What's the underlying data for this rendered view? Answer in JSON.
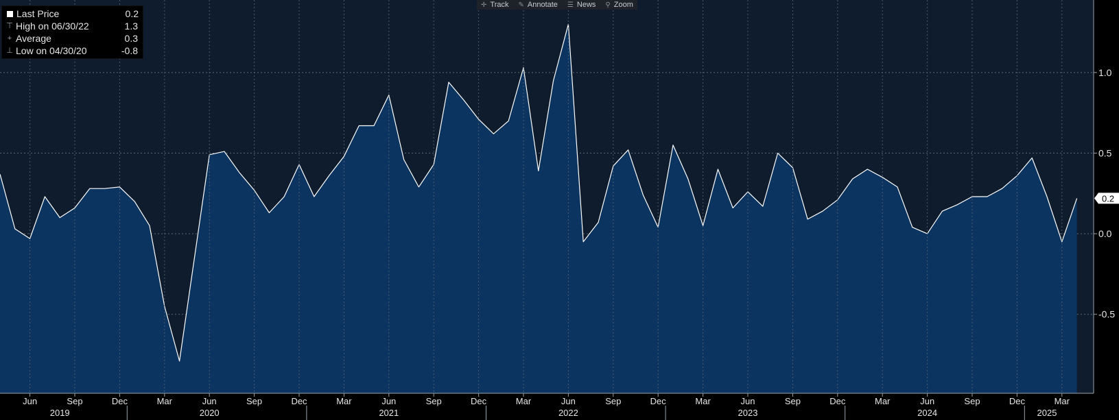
{
  "toolbar": {
    "track": "Track",
    "annotate": "Annotate",
    "news": "News",
    "zoom": "Zoom"
  },
  "legend": {
    "last_label": "Last Price",
    "last_value": "0.2",
    "high_label": "High on 06/30/22",
    "high_value": "1.3",
    "avg_label": "Average",
    "avg_value": "0.3",
    "low_label": "Low on 04/30/20",
    "low_value": "-0.8"
  },
  "colors": {
    "background": "#0f1c2d",
    "area_fill": "#0b3460",
    "line": "#ffffff",
    "grid": "#5a6775",
    "axis_text": "#e6e6e6"
  },
  "chart_data": {
    "type": "area",
    "x": [
      "2019-04",
      "2019-05",
      "2019-06",
      "2019-07",
      "2019-08",
      "2019-09",
      "2019-10",
      "2019-11",
      "2019-12",
      "2020-01",
      "2020-02",
      "2020-03",
      "2020-04",
      "2020-05",
      "2020-06",
      "2020-07",
      "2020-08",
      "2020-09",
      "2020-10",
      "2020-11",
      "2020-12",
      "2021-01",
      "2021-02",
      "2021-03",
      "2021-04",
      "2021-05",
      "2021-06",
      "2021-07",
      "2021-08",
      "2021-09",
      "2021-10",
      "2021-11",
      "2021-12",
      "2022-01",
      "2022-02",
      "2022-03",
      "2022-04",
      "2022-05",
      "2022-06",
      "2022-07",
      "2022-08",
      "2022-09",
      "2022-10",
      "2022-11",
      "2022-12",
      "2023-01",
      "2023-02",
      "2023-03",
      "2023-04",
      "2023-05",
      "2023-06",
      "2023-07",
      "2023-08",
      "2023-09",
      "2023-10",
      "2023-11",
      "2023-12",
      "2024-01",
      "2024-02",
      "2024-03",
      "2024-04",
      "2024-05",
      "2024-06",
      "2024-07",
      "2024-08",
      "2024-09",
      "2024-10",
      "2024-11",
      "2024-12",
      "2025-01",
      "2025-02",
      "2025-03",
      "2025-04"
    ],
    "values": [
      0.37,
      0.03,
      -0.03,
      0.23,
      0.1,
      0.16,
      0.28,
      0.28,
      0.29,
      0.2,
      0.05,
      -0.45,
      -0.79,
      -0.15,
      0.49,
      0.51,
      0.38,
      0.27,
      0.13,
      0.23,
      0.43,
      0.23,
      0.36,
      0.48,
      0.67,
      0.67,
      0.86,
      0.46,
      0.29,
      0.43,
      0.94,
      0.83,
      0.71,
      0.62,
      0.7,
      1.03,
      0.39,
      0.95,
      1.3,
      -0.05,
      0.07,
      0.42,
      0.52,
      0.24,
      0.04,
      0.55,
      0.34,
      0.05,
      0.4,
      0.16,
      0.26,
      0.17,
      0.5,
      0.41,
      0.09,
      0.14,
      0.21,
      0.34,
      0.4,
      0.35,
      0.29,
      0.04,
      0.0,
      0.14,
      0.18,
      0.23,
      0.23,
      0.28,
      0.36,
      0.47,
      0.23,
      -0.05,
      0.22
    ],
    "ylim": [
      -0.99,
      1.45
    ],
    "yticks": [
      -0.5,
      0.0,
      0.5,
      1.0
    ],
    "ytick_labels": [
      "-0.5",
      "0.0",
      "0.5",
      "1.0"
    ],
    "last_value_label": "0.2",
    "month_ticks": [
      {
        "date": "2019-06",
        "label": "Jun"
      },
      {
        "date": "2019-09",
        "label": "Sep"
      },
      {
        "date": "2019-12",
        "label": "Dec"
      },
      {
        "date": "2020-03",
        "label": "Mar"
      },
      {
        "date": "2020-06",
        "label": "Jun"
      },
      {
        "date": "2020-09",
        "label": "Sep"
      },
      {
        "date": "2020-12",
        "label": "Dec"
      },
      {
        "date": "2021-03",
        "label": "Mar"
      },
      {
        "date": "2021-06",
        "label": "Jun"
      },
      {
        "date": "2021-09",
        "label": "Sep"
      },
      {
        "date": "2021-12",
        "label": "Dec"
      },
      {
        "date": "2022-03",
        "label": "Mar"
      },
      {
        "date": "2022-06",
        "label": "Jun"
      },
      {
        "date": "2022-09",
        "label": "Sep"
      },
      {
        "date": "2022-12",
        "label": "Dec"
      },
      {
        "date": "2023-03",
        "label": "Mar"
      },
      {
        "date": "2023-06",
        "label": "Jun"
      },
      {
        "date": "2023-09",
        "label": "Sep"
      },
      {
        "date": "2023-12",
        "label": "Dec"
      },
      {
        "date": "2024-03",
        "label": "Mar"
      },
      {
        "date": "2024-06",
        "label": "Jun"
      },
      {
        "date": "2024-09",
        "label": "Sep"
      },
      {
        "date": "2024-12",
        "label": "Dec"
      },
      {
        "date": "2025-03",
        "label": "Mar"
      }
    ],
    "year_labels": [
      {
        "date": "2019-08",
        "label": "2019"
      },
      {
        "date": "2020-06",
        "label": "2020"
      },
      {
        "date": "2021-06",
        "label": "2021"
      },
      {
        "date": "2022-06",
        "label": "2022"
      },
      {
        "date": "2023-06",
        "label": "2023"
      },
      {
        "date": "2024-06",
        "label": "2024"
      },
      {
        "date": "2025-02",
        "label": "2025"
      }
    ],
    "year_dividers": [
      "2019-12",
      "2020-12",
      "2021-12",
      "2022-12",
      "2023-12",
      "2024-12"
    ],
    "grid": true,
    "legend_position": "top-left"
  }
}
